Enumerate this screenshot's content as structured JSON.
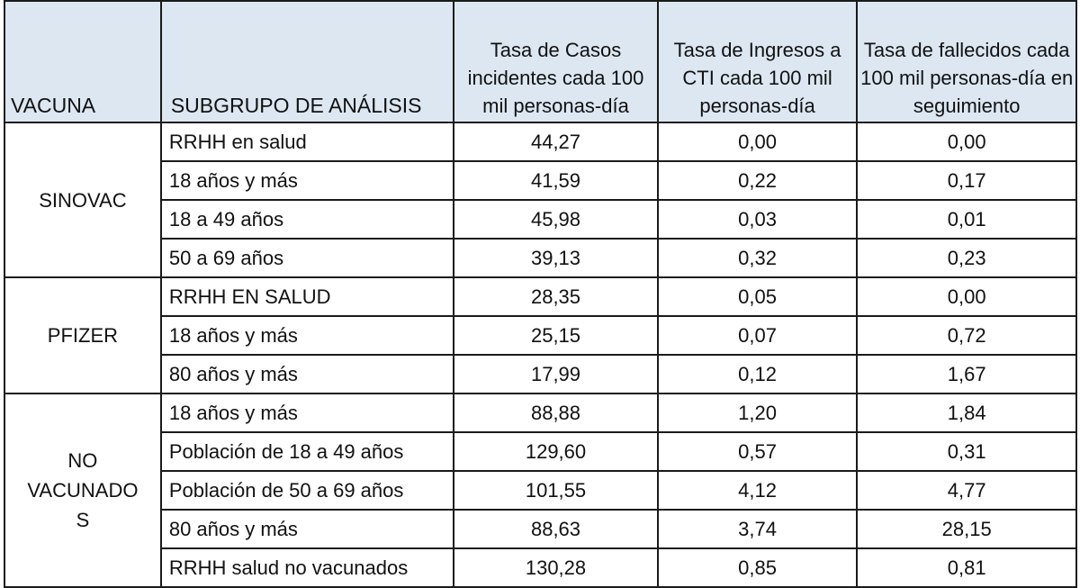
{
  "headers": {
    "vacuna": "VACUNA",
    "subgrupo": "SUBGRUPO DE ANÁLISIS",
    "casos": "Tasa de Casos incidentes cada 100 mil personas-día",
    "cti": "Tasa de Ingresos a CTI cada 100 mil personas-día",
    "fallecidos": "Tasa de fallecidos cada 100 mil personas-día en seguimiento"
  },
  "groups": [
    {
      "vacuna": "SINOVAC",
      "rows": [
        {
          "subgrupo": "RRHH en salud",
          "casos": "44,27",
          "cti": "0,00",
          "fallecidos": "0,00"
        },
        {
          "subgrupo": "18 años y más",
          "casos": "41,59",
          "cti": "0,22",
          "fallecidos": "0,17"
        },
        {
          "subgrupo": "18 a 49 años",
          "casos": "45,98",
          "cti": "0,03",
          "fallecidos": "0,01"
        },
        {
          "subgrupo": "50 a 69 años",
          "casos": "39,13",
          "cti": "0,32",
          "fallecidos": "0,23"
        }
      ]
    },
    {
      "vacuna": "PFIZER",
      "rows": [
        {
          "subgrupo": "RRHH EN SALUD",
          "casos": "28,35",
          "cti": "0,05",
          "fallecidos": "0,00"
        },
        {
          "subgrupo": "18 años y más",
          "casos": "25,15",
          "cti": "0,07",
          "fallecidos": "0,72"
        },
        {
          "subgrupo": "80 años y más",
          "casos": "17,99",
          "cti": "0,12",
          "fallecidos": "1,67"
        }
      ]
    },
    {
      "vacuna": "NO VACUNADO S",
      "rows": [
        {
          "subgrupo": "18 años y más",
          "casos": "88,88",
          "cti": "1,20",
          "fallecidos": "1,84"
        },
        {
          "subgrupo": "Población de 18 a 49 años",
          "casos": "129,60",
          "cti": "0,57",
          "fallecidos": "0,31"
        },
        {
          "subgrupo": "Población de 50 a 69 años",
          "casos": "101,55",
          "cti": "4,12",
          "fallecidos": "4,77"
        },
        {
          "subgrupo": "80 años y más",
          "casos": "88,63",
          "cti": "3,74",
          "fallecidos": "28,15"
        },
        {
          "subgrupo": "RRHH salud no vacunados",
          "casos": "130,28",
          "cti": "0,85",
          "fallecidos": "0,81"
        }
      ]
    }
  ]
}
